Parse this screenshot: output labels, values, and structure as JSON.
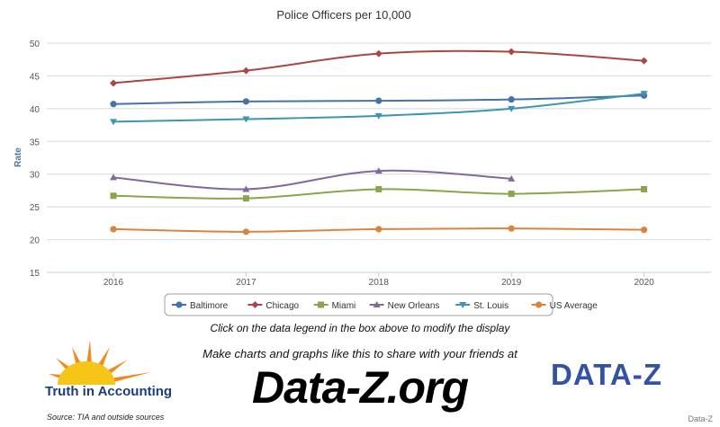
{
  "chart_data": {
    "type": "line",
    "title": "Police Officers per 10,000",
    "ylabel": "Rate",
    "xlabel": "",
    "categories": [
      "2016",
      "2017",
      "2018",
      "2019",
      "2020"
    ],
    "ylim": [
      15,
      50
    ],
    "yticks": [
      15,
      20,
      25,
      30,
      35,
      40,
      45,
      50
    ],
    "grid": true,
    "legend_position": "bottom",
    "series": [
      {
        "name": "Baltimore",
        "values": [
          40.7,
          41.1,
          41.2,
          41.4,
          42.0
        ],
        "color": "#4572a7",
        "marker": "circle"
      },
      {
        "name": "Chicago",
        "values": [
          43.9,
          45.8,
          48.4,
          48.7,
          47.3
        ],
        "color": "#aa4643",
        "marker": "diamond"
      },
      {
        "name": "Miami",
        "values": [
          26.7,
          26.3,
          27.7,
          27.0,
          27.7
        ],
        "color": "#89a54e",
        "marker": "square"
      },
      {
        "name": "New Orleans",
        "values": [
          29.5,
          27.7,
          30.5,
          29.3,
          null
        ],
        "color": "#80699b",
        "marker": "triangle"
      },
      {
        "name": "St. Louis",
        "values": [
          38.0,
          38.4,
          38.9,
          40.0,
          42.3
        ],
        "color": "#3d96ae",
        "marker": "triangle-down"
      },
      {
        "name": "US Average",
        "values": [
          21.6,
          21.2,
          21.6,
          21.7,
          21.5
        ],
        "color": "#db843d",
        "marker": "circle"
      }
    ]
  },
  "footer": {
    "instruction": "Click on the data legend in the box above to modify the display",
    "make_charts": "Make charts and graphs like this to share with your friends at",
    "site": "Data-Z.org",
    "tia_logo_text": "Truth in Accounting",
    "dataz_logo_text": "DATA-Z",
    "source": "Source: TIA and outside sources",
    "credit": "Data-Z"
  }
}
